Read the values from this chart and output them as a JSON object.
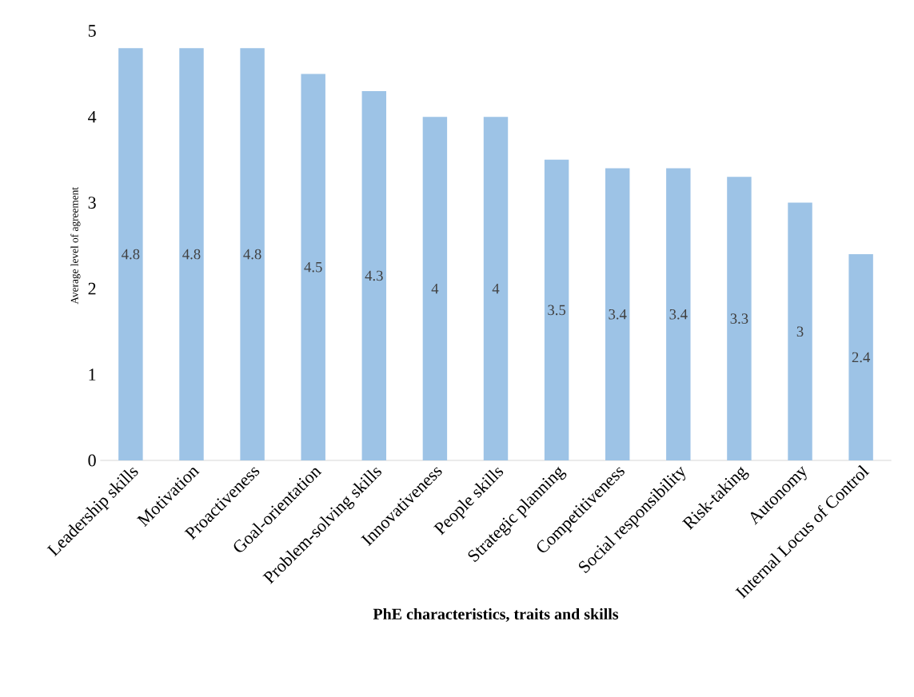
{
  "chart_data": {
    "type": "bar",
    "xlabel": "PhE characteristics, traits and skills",
    "ylabel": "Average level of agreement",
    "categories": [
      "Leadership skills",
      "Motivation",
      "Proactiveness",
      "Goal-orientation",
      "Problem-solving skills",
      "Innovativeness",
      "People skills",
      "Strategic planning",
      "Competitiveness",
      "Social responsibility",
      "Risk-taking",
      "Autonomy",
      "Internal Locus of Control"
    ],
    "values": [
      4.8,
      4.8,
      4.8,
      4.5,
      4.3,
      4,
      4,
      3.5,
      3.4,
      3.4,
      3.3,
      3,
      2.4
    ],
    "color": "#9dc3e6",
    "ylim": [
      0,
      5
    ],
    "yticks": [
      0,
      1,
      2,
      3,
      4,
      5
    ],
    "data_labels": true
  }
}
